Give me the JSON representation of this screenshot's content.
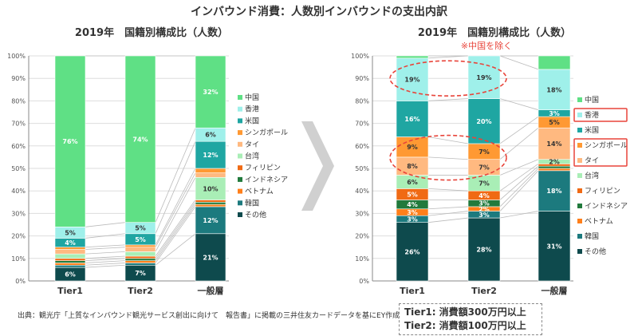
{
  "header": {
    "title": "インバウンド消費：人数別インバウンドの支出内訳"
  },
  "footer": {
    "source": "出典：観光庁「上質なインバウンド観光サービス創出に向けて　報告書」に掲載の三井住友カードデータを基にEY作成"
  },
  "tier_definitions": [
    "Tier1: 消費額300万円以上",
    "Tier2: 消費額100万円以上"
  ],
  "colors": {
    "中国": "#5fe085",
    "香港": "#9ff0ea",
    "米国": "#1fa6a2",
    "シンガポール": "#ff9933",
    "タイ": "#ffb980",
    "台湾": "#a9eeb6",
    "フィリピン": "#f06a14",
    "インドネシア": "#217a3c",
    "ベトナム": "#ff7f1a",
    "韓国": "#1c7a7e",
    "その他": "#0e4a4d",
    "highlight": "#e8443a",
    "axis": "#888888",
    "grid": "#dddddd",
    "arrow": "#d0d0d0"
  },
  "chart_data": [
    {
      "type": "bar",
      "stacked": true,
      "title": "2019年　国籍別構成比（人数）",
      "note": "",
      "categories": [
        "Tier1",
        "Tier2",
        "一般層"
      ],
      "y_ticks": [
        "0%",
        "10%",
        "20%",
        "30%",
        "40%",
        "50%",
        "60%",
        "70%",
        "80%",
        "90%",
        "100%"
      ],
      "ylim": [
        0,
        100
      ],
      "legend_position": "right",
      "series": [
        {
          "name": "その他",
          "values": [
            6,
            7,
            21
          ],
          "labels": [
            "6%",
            "7%",
            "21%"
          ]
        },
        {
          "name": "韓国",
          "values": [
            1,
            1,
            12
          ],
          "labels": [
            "",
            "",
            "12%"
          ]
        },
        {
          "name": "ベトナム",
          "values": [
            1,
            1,
            1
          ],
          "labels": [
            "",
            "",
            ""
          ]
        },
        {
          "name": "インドネシア",
          "values": [
            1,
            1,
            1
          ],
          "labels": [
            "",
            "",
            ""
          ]
        },
        {
          "name": "フィリピン",
          "values": [
            1,
            1,
            1
          ],
          "labels": [
            "",
            "",
            ""
          ]
        },
        {
          "name": "台湾",
          "values": [
            2,
            2,
            10
          ],
          "labels": [
            "",
            "",
            "10%"
          ]
        },
        {
          "name": "タイ",
          "values": [
            2,
            2,
            2
          ],
          "labels": [
            "",
            "",
            ""
          ]
        },
        {
          "name": "シンガポール",
          "values": [
            1,
            1,
            2
          ],
          "labels": [
            "",
            "",
            ""
          ]
        },
        {
          "name": "米国",
          "values": [
            4,
            5,
            12
          ],
          "labels": [
            "4%",
            "5%",
            "12%"
          ]
        },
        {
          "name": "香港",
          "values": [
            5,
            5,
            6
          ],
          "labels": [
            "5%",
            "5%",
            "6%"
          ]
        },
        {
          "name": "中国",
          "values": [
            76,
            74,
            32
          ],
          "labels": [
            "76%",
            "74%",
            "32%"
          ]
        }
      ]
    },
    {
      "type": "bar",
      "stacked": true,
      "title": "2019年　国籍別構成比（人数）",
      "note": "※中国を除く",
      "categories": [
        "Tier1",
        "Tier2",
        "一般層"
      ],
      "y_ticks": [
        "0%",
        "10%",
        "20%",
        "30%",
        "40%",
        "50%",
        "60%",
        "70%",
        "80%",
        "90%",
        "100%"
      ],
      "ylim": [
        0,
        100
      ],
      "legend_position": "right",
      "series": [
        {
          "name": "その他",
          "values": [
            26,
            28,
            31
          ],
          "labels": [
            "26%",
            "28%",
            "31%"
          ]
        },
        {
          "name": "韓国",
          "values": [
            3,
            3,
            18
          ],
          "labels": [
            "3%",
            "3%",
            "18%"
          ]
        },
        {
          "name": "ベトナム",
          "values": [
            3,
            2,
            1
          ],
          "labels": [
            "3%",
            "2%",
            ""
          ]
        },
        {
          "name": "インドネシア",
          "values": [
            4,
            3,
            1
          ],
          "labels": [
            "4%",
            "3%",
            ""
          ]
        },
        {
          "name": "フィリピン",
          "values": [
            5,
            4,
            1
          ],
          "labels": [
            "5%",
            "4%",
            ""
          ]
        },
        {
          "name": "台湾",
          "values": [
            6,
            7,
            2
          ],
          "labels": [
            "6%",
            "7%",
            "2%"
          ]
        },
        {
          "name": "タイ",
          "values": [
            8,
            7,
            14
          ],
          "labels": [
            "8%",
            "7%",
            "14%"
          ]
        },
        {
          "name": "シンガポール",
          "values": [
            9,
            7,
            5
          ],
          "labels": [
            "9%",
            "7%",
            "5%"
          ]
        },
        {
          "name": "米国",
          "values": [
            16,
            20,
            3
          ],
          "labels": [
            "16%",
            "20%",
            "3%"
          ]
        },
        {
          "name": "香港",
          "values": [
            19,
            19,
            18
          ],
          "labels": [
            "19%",
            "19%",
            "18%"
          ]
        },
        {
          "name": "中国",
          "values": [
            1,
            0,
            6
          ],
          "labels": [
            "",
            "",
            ""
          ]
        }
      ]
    }
  ]
}
